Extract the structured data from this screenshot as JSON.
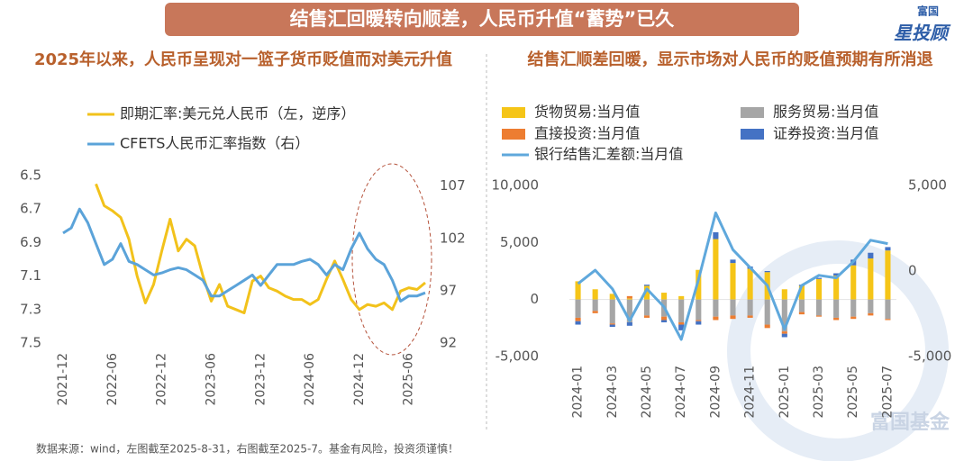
{
  "header": {
    "title": "结售汇回暖转向顺差，人民币升值“蓄势”已久",
    "logo_top": "富国",
    "logo_bottom": "星投顾"
  },
  "chart_data": [
    {
      "type": "line",
      "title": "2025年以来，人民币呈现对一篮子货币贬值而对美元升值",
      "categories": [
        "2021-12",
        null,
        null,
        null,
        null,
        null,
        "2022-06",
        null,
        null,
        null,
        null,
        null,
        "2022-12",
        null,
        null,
        null,
        null,
        null,
        "2023-06",
        null,
        null,
        null,
        null,
        null,
        "2023-12",
        null,
        null,
        null,
        null,
        null,
        "2024-06",
        null,
        null,
        null,
        null,
        null,
        "2024-12",
        null,
        null,
        null,
        null,
        null,
        "2025-06",
        null,
        null
      ],
      "series": [
        {
          "name": "即期汇率:美元兑人民币（左，逆序）",
          "color": "#f2c21b",
          "axis": "y",
          "values": [
            null,
            null,
            null,
            null,
            6.55,
            6.68,
            6.71,
            6.75,
            6.88,
            7.1,
            7.26,
            7.15,
            6.95,
            6.76,
            6.95,
            6.88,
            6.92,
            7.1,
            7.25,
            7.15,
            7.28,
            7.3,
            7.32,
            7.13,
            7.1,
            7.17,
            7.19,
            7.22,
            7.24,
            7.24,
            7.27,
            7.24,
            7.12,
            7.01,
            7.12,
            7.24,
            7.3,
            7.27,
            7.28,
            7.26,
            7.3,
            7.19,
            7.17,
            7.18,
            7.14
          ]
        },
        {
          "name": "CFETS人民币汇率指数（右）",
          "color": "#5ba3d9",
          "axis": "y2",
          "values": [
            102.5,
            103,
            104.8,
            103.5,
            101.5,
            99.5,
            100,
            101.5,
            99.8,
            99.5,
            99,
            98.5,
            98.7,
            99,
            99.2,
            99,
            98.5,
            98,
            96.5,
            96.5,
            97,
            97.5,
            98,
            98.5,
            97.5,
            98.5,
            99.5,
            99.5,
            99.5,
            99.8,
            100,
            99.5,
            98.5,
            99.5,
            99,
            101,
            102.5,
            101,
            100,
            99.5,
            98,
            96,
            96.5,
            96.5,
            96.8
          ]
        }
      ],
      "ylim": [
        6.5,
        7.5
      ],
      "y_inverted": true,
      "yticks": [
        6.5,
        6.7,
        6.9,
        7.1,
        7.3,
        7.5
      ],
      "y2lim": [
        92,
        108
      ],
      "y2ticks": [
        92,
        97,
        102,
        107
      ]
    },
    {
      "type": "combo",
      "title": "结售汇顺差回暖，显示市场对人民币的贬值预期有所消退",
      "categories": [
        "2024-01",
        null,
        "2024-03",
        null,
        "2024-05",
        null,
        "2024-07",
        null,
        "2024-09",
        null,
        "2024-11",
        null,
        "2025-01",
        null,
        "2025-03",
        null,
        "2025-05",
        null,
        "2025-07"
      ],
      "series": [
        {
          "name": "货物贸易:当月值",
          "kind": "bar",
          "color": "#f5c518",
          "axis": "y",
          "values": [
            1600,
            900,
            500,
            100,
            1200,
            600,
            300,
            2600,
            5300,
            3200,
            2700,
            2400,
            900,
            1200,
            1800,
            2100,
            3000,
            3600,
            4300
          ]
        },
        {
          "name": "服务贸易:当月值",
          "kind": "bar",
          "color": "#a6a6a6",
          "axis": "y",
          "values": [
            -1600,
            -1000,
            -2100,
            -2000,
            -1400,
            -1500,
            -2000,
            -1800,
            -1500,
            -1400,
            -1400,
            -2200,
            -2800,
            -1100,
            -1400,
            -1600,
            -1500,
            -1200,
            -1700
          ]
        },
        {
          "name": "直接投资:当月值",
          "kind": "bar",
          "color": "#ed7d31",
          "axis": "y",
          "values": [
            -300,
            -200,
            -100,
            200,
            -200,
            -300,
            -200,
            -100,
            -300,
            -300,
            -200,
            -300,
            -200,
            -200,
            -100,
            -200,
            -200,
            -200,
            -100
          ]
        },
        {
          "name": "证券投资:当月值",
          "kind": "bar",
          "color": "#4472c4",
          "axis": "y",
          "values": [
            -300,
            0,
            -200,
            -300,
            100,
            -200,
            -500,
            -300,
            600,
            300,
            200,
            100,
            -300,
            100,
            100,
            200,
            500,
            500,
            300
          ]
        },
        {
          "name": "银行结售汇差额:当月值",
          "kind": "line",
          "color": "#5fa8dc",
          "axis": "y2",
          "values": [
            -740,
            50,
            -1050,
            -2900,
            -1050,
            -2100,
            -4000,
            -500,
            3400,
            1250,
            200,
            -850,
            -3400,
            -850,
            -250,
            -400,
            550,
            1800,
            1600
          ]
        }
      ],
      "ylim": [
        -5000,
        10000
      ],
      "yticks": [
        {
          "value": -5000,
          "label": "-5,000"
        },
        0,
        {
          "value": 5000,
          "label": "5,000"
        },
        {
          "value": 10000,
          "label": "10,000"
        }
      ],
      "y2lim": [
        -5000,
        5000
      ],
      "y2ticks": [
        {
          "value": -5000,
          "label": "-5,000"
        },
        0,
        {
          "value": 5000,
          "label": "5,000"
        }
      ]
    }
  ],
  "footer": {
    "source": "数据来源：wind，左图截至2025-8-31，右图截至2025-7。基金有风险，投资须谨慎！",
    "watermark": "富国基金"
  }
}
